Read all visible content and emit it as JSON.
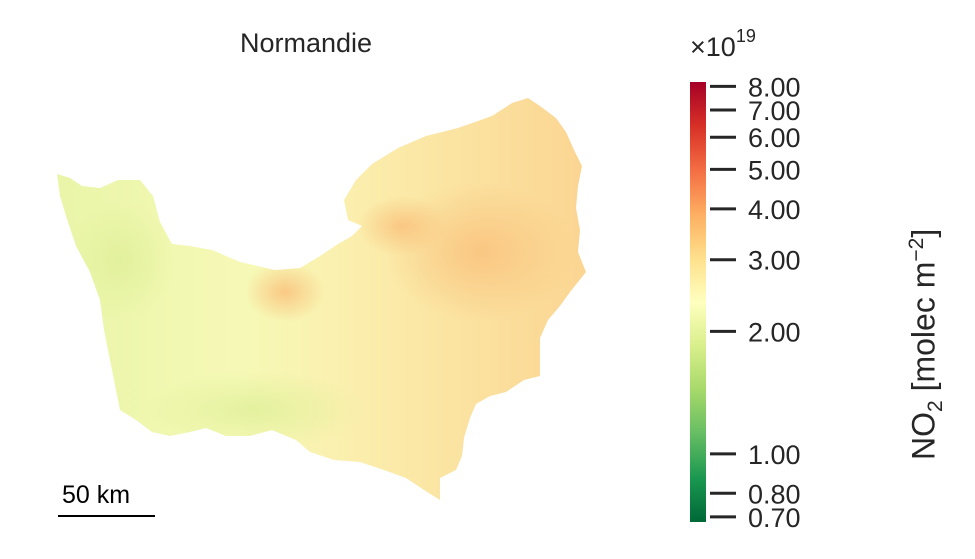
{
  "map": {
    "title": "Normandie",
    "scale_bar": {
      "label": "50 km"
    }
  },
  "colorbar": {
    "multiplier_base": "×10",
    "multiplier_exp": "19",
    "label_main": "NO",
    "label_sub": "2",
    "label_units_pre": " [molec m",
    "label_units_sup": "−2",
    "label_units_post": "]",
    "colormap": [
      "#006837",
      "#1a9850",
      "#66bd63",
      "#a6d96a",
      "#d9ef8b",
      "#ffffbf",
      "#fee08b",
      "#fdae61",
      "#f46d43",
      "#d73027",
      "#a50026"
    ],
    "scale": "log",
    "range": [
      0.68,
      8.2
    ],
    "ticks": [
      {
        "value": 8.0,
        "label": "8.00"
      },
      {
        "value": 7.0,
        "label": "7.00"
      },
      {
        "value": 6.0,
        "label": "6.00"
      },
      {
        "value": 5.0,
        "label": "5.00"
      },
      {
        "value": 4.0,
        "label": "4.00"
      },
      {
        "value": 3.0,
        "label": "3.00"
      },
      {
        "value": 2.0,
        "label": "2.00"
      },
      {
        "value": 1.0,
        "label": "1.00"
      },
      {
        "value": 0.8,
        "label": "0.80"
      },
      {
        "value": 0.7,
        "label": "0.70"
      }
    ]
  }
}
